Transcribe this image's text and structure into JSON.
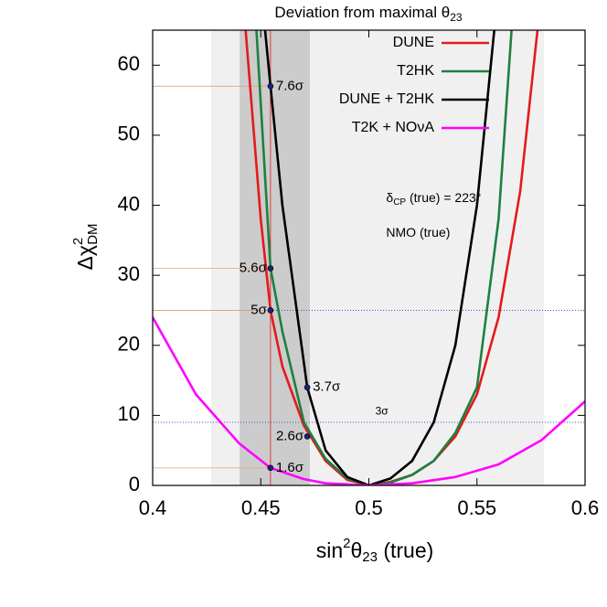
{
  "chart_data": {
    "type": "line",
    "title": {
      "text": "Deviation from maximal θ",
      "sub": "23"
    },
    "xlabel": {
      "pre": "sin",
      "sup": "2",
      "mid": "θ",
      "sub": "23",
      "post": " (true)"
    },
    "ylabel": {
      "pre": "Δχ",
      "sup": "2",
      "sub": "DM"
    },
    "xlim": [
      0.4,
      0.6
    ],
    "ylim": [
      0,
      65
    ],
    "xticks": [
      0.4,
      0.45,
      0.5,
      0.55,
      0.6
    ],
    "yticks": [
      0,
      10,
      20,
      30,
      40,
      50,
      60
    ],
    "legend": "upper right",
    "series": [
      {
        "name": "DUNE",
        "color": "#e41a1c",
        "x": [
          0.443,
          0.45,
          0.4545,
          0.46,
          0.47,
          0.48,
          0.49,
          0.5,
          0.51,
          0.52,
          0.53,
          0.54,
          0.55,
          0.56,
          0.57,
          0.578
        ],
        "values": [
          65,
          38,
          25,
          17,
          8.5,
          3.5,
          0.8,
          0,
          0.5,
          1.5,
          3.5,
          7,
          13,
          24,
          42,
          65
        ]
      },
      {
        "name": "T2HK",
        "color": "#1e8040",
        "x": [
          0.448,
          0.4545,
          0.46,
          0.47,
          0.48,
          0.49,
          0.5,
          0.51,
          0.52,
          0.53,
          0.54,
          0.55,
          0.56,
          0.566
        ],
        "values": [
          65,
          31,
          22,
          9,
          3.8,
          1,
          0,
          0.4,
          1.5,
          3.5,
          7.5,
          14,
          38,
          65
        ]
      },
      {
        "name": "DUNE + T2HK",
        "color": "#000000",
        "x": [
          0.452,
          0.4545,
          0.46,
          0.4715,
          0.48,
          0.49,
          0.5,
          0.51,
          0.52,
          0.53,
          0.54,
          0.55,
          0.558
        ],
        "values": [
          65,
          57,
          40,
          14,
          5,
          1.2,
          0,
          1,
          3.5,
          9,
          20,
          40,
          65
        ]
      },
      {
        "name": "T2K + NOνA",
        "color": "#ff00ff",
        "x": [
          0.4,
          0.42,
          0.44,
          0.4545,
          0.47,
          0.48,
          0.5,
          0.52,
          0.54,
          0.56,
          0.58,
          0.6
        ],
        "values": [
          24,
          13,
          6,
          2.5,
          0.9,
          0.3,
          0,
          0.3,
          1.2,
          3,
          6.5,
          12
        ]
      }
    ],
    "bands": [
      {
        "x0": 0.427,
        "x1": 0.581,
        "color": "#f0f0f0"
      },
      {
        "x0": 0.4402,
        "x1": 0.4727,
        "color": "#cccccc"
      }
    ],
    "vline": 0.4545,
    "guide_lines": [
      57,
      31,
      25,
      2.5
    ],
    "threshold_lines": [
      25,
      9
    ],
    "threshold_label": {
      "text": "3σ",
      "x": 0.503,
      "y": 10.5
    },
    "points": [
      {
        "x": 0.4545,
        "y": 57,
        "label": "7.6σ",
        "side": "right"
      },
      {
        "x": 0.4545,
        "y": 31,
        "label": "5.6σ",
        "side": "left"
      },
      {
        "x": 0.4545,
        "y": 25,
        "label": "5σ",
        "side": "left"
      },
      {
        "x": 0.4715,
        "y": 14,
        "label": "3.7σ",
        "side": "right"
      },
      {
        "x": 0.4715,
        "y": 7,
        "label": "2.6σ",
        "side": "left"
      },
      {
        "x": 0.4545,
        "y": 2.5,
        "label": "1.6σ",
        "side": "right"
      }
    ],
    "annotations": [
      {
        "pre": "δ",
        "sub": "CP",
        "post": " (true) = 223°",
        "x": 0.508,
        "y": 41
      },
      {
        "pre": "NMO (true)",
        "x": 0.508,
        "y": 36
      }
    ]
  }
}
